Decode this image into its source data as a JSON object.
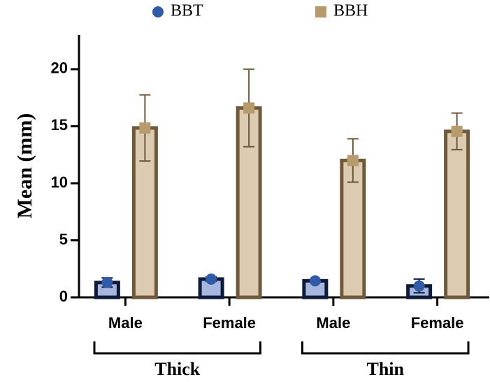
{
  "chart_data": {
    "type": "bar",
    "ylabel": "Mean (mm)",
    "categories": [
      "Male",
      "Female",
      "Male",
      "Female"
    ],
    "groups": [
      "Thick",
      "Thin"
    ],
    "series": [
      {
        "name": "BBT",
        "marker": "circle",
        "color": "#2f5ba8",
        "fill": "#a7b6df",
        "edge": "#0d1a3a",
        "values": [
          1.3,
          1.6,
          1.45,
          1.0
        ],
        "errors": [
          0.4,
          0.2,
          0.1,
          0.6
        ]
      },
      {
        "name": "BBH",
        "marker": "square",
        "color": "#b89b6c",
        "fill": "#dccbb0",
        "edge": "#6e5a3a",
        "values": [
          14.85,
          16.6,
          12.0,
          14.55
        ],
        "errors": [
          2.9,
          3.4,
          1.9,
          1.6
        ]
      }
    ],
    "ylim": [
      0,
      23
    ],
    "yticks": [
      0,
      5,
      10,
      15,
      20
    ]
  }
}
